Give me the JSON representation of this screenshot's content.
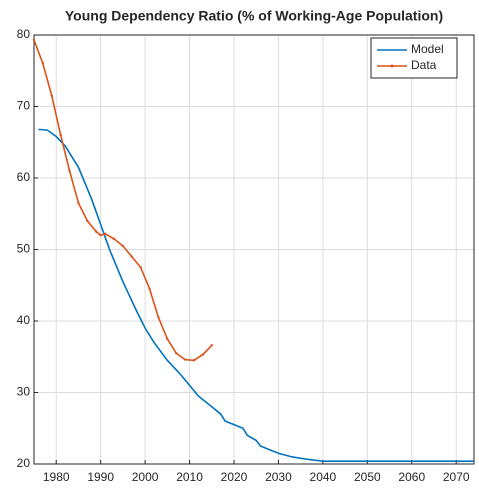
{
  "chart_data": {
    "type": "line",
    "title": "Young Dependency Ratio (% of Working-Age Population)",
    "xlim": [
      1975,
      2074
    ],
    "ylim": [
      20,
      80
    ],
    "xticks": [
      1980,
      1990,
      2000,
      2010,
      2020,
      2030,
      2040,
      2050,
      2060,
      2070
    ],
    "yticks": [
      20,
      30,
      40,
      50,
      60,
      70,
      80
    ],
    "grid": true,
    "legend": "top-right",
    "series": [
      {
        "name": "Model",
        "color": "#0072bd",
        "marker": false,
        "x": [
          1976,
          1978,
          1980,
          1982,
          1985,
          1988,
          1990,
          1992,
          1995,
          1998,
          2000,
          2002,
          2005,
          2008,
          2010,
          2012,
          2015,
          2017,
          2018,
          2020,
          2022,
          2023,
          2025,
          2026,
          2028,
          2030,
          2033,
          2036,
          2040,
          2050,
          2060,
          2074
        ],
        "values": [
          66.8,
          66.7,
          65.8,
          64.5,
          61.5,
          57,
          53.5,
          50,
          45.5,
          41.5,
          39,
          37,
          34.5,
          32.5,
          31,
          29.5,
          28,
          27,
          26,
          25.5,
          25,
          24,
          23.3,
          22.5,
          22,
          21.5,
          21,
          20.7,
          20.4,
          20.4,
          20.4,
          20.4
        ]
      },
      {
        "name": "Data",
        "color": "#d95319",
        "marker": true,
        "x": [
          1975,
          1977,
          1979,
          1981,
          1983,
          1985,
          1987,
          1989,
          1990,
          1991,
          1993,
          1995,
          1997,
          1999,
          2001,
          2003,
          2005,
          2007,
          2009,
          2011,
          2013,
          2015
        ],
        "values": [
          79.3,
          76,
          71.5,
          66,
          61,
          56.5,
          54,
          52.5,
          52,
          52.2,
          51.5,
          50.5,
          49,
          47.5,
          44.5,
          40.5,
          37.5,
          35.5,
          34.6,
          34.5,
          35.3,
          36.6
        ]
      }
    ]
  }
}
